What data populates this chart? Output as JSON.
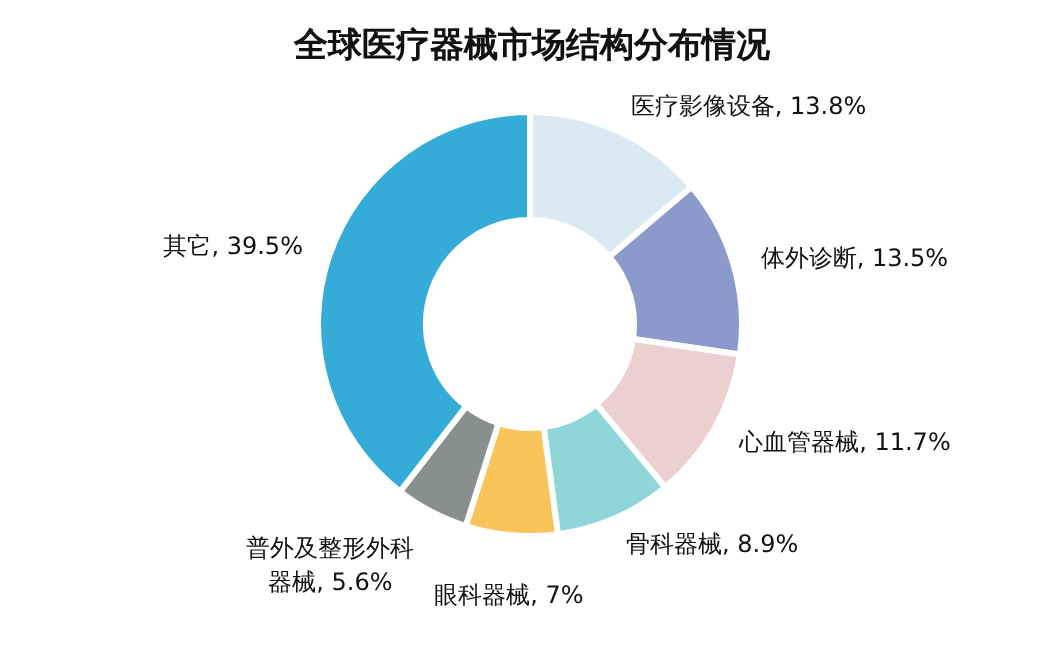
{
  "chart_data": {
    "type": "donut",
    "title": "全球医疗器械市场结构分布情况",
    "categories": [
      "医疗影像设备",
      "体外诊断",
      "心血管器械",
      "骨科器械",
      "眼科器械",
      "普外及整形外科器械",
      "其它"
    ],
    "values": [
      13.8,
      13.5,
      11.7,
      8.9,
      7,
      5.6,
      39.5
    ],
    "colors": [
      "#dbe9f3",
      "#8b9acb",
      "#eccfd1",
      "#8fd6d9",
      "#f9c55a",
      "#87908f",
      "#35acd8"
    ],
    "value_labels": [
      ", 13.8%",
      ", 13.5%",
      ", 11.7%",
      ", 8.9%",
      ", 7%",
      ", 5.6%",
      ", 39.5%"
    ],
    "legend": false
  }
}
